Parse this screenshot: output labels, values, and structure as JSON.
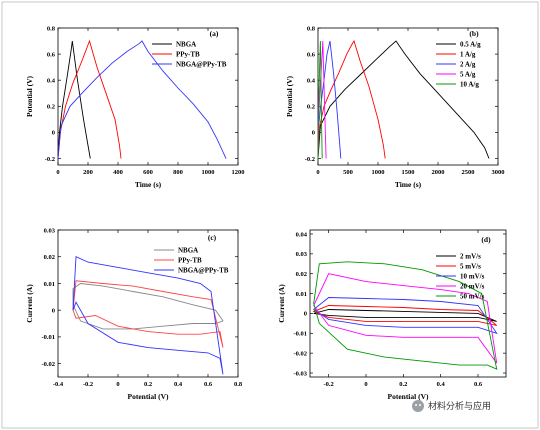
{
  "chart_data": [
    {
      "type": "line",
      "panel": "(a)",
      "xlabel": "Time (s)",
      "ylabel": "Potential (V)",
      "xlim": [
        0,
        1200
      ],
      "ylim": [
        -0.25,
        0.8
      ],
      "xticks": [
        0,
        200,
        400,
        600,
        800,
        1000,
        1200
      ],
      "yticks": [
        -0.2,
        0.0,
        0.2,
        0.4,
        0.6,
        0.8
      ],
      "legend_placement": "top-right",
      "series": [
        {
          "name": "NBGA",
          "color": "#000000",
          "x": [
            0,
            10,
            30,
            60,
            90,
            95,
            130,
            170,
            200,
            215
          ],
          "y": [
            -0.2,
            0.0,
            0.2,
            0.42,
            0.65,
            0.7,
            0.4,
            0.1,
            -0.1,
            -0.2
          ]
        },
        {
          "name": "PPy-TB",
          "color": "#ff0000",
          "x": [
            0,
            15,
            50,
            100,
            150,
            190,
            210,
            260,
            320,
            380,
            410,
            420
          ],
          "y": [
            -0.2,
            0.0,
            0.2,
            0.38,
            0.52,
            0.64,
            0.7,
            0.5,
            0.3,
            0.1,
            -0.1,
            -0.2
          ]
        },
        {
          "name": "NBGA@PPy-TB",
          "color": "#3333ff",
          "x": [
            0,
            20,
            80,
            160,
            260,
            360,
            460,
            540,
            560,
            600,
            700,
            800,
            900,
            1000,
            1060,
            1100,
            1120
          ],
          "y": [
            -0.2,
            0.05,
            0.2,
            0.3,
            0.42,
            0.53,
            0.62,
            0.68,
            0.7,
            0.62,
            0.47,
            0.34,
            0.22,
            0.08,
            -0.05,
            -0.15,
            -0.2
          ]
        }
      ]
    },
    {
      "type": "line",
      "panel": "(b)",
      "xlabel": "Time (s)",
      "ylabel": "Potential (V)",
      "xlim": [
        0,
        3000
      ],
      "ylim": [
        -0.25,
        0.8
      ],
      "xticks": [
        0,
        500,
        1000,
        1500,
        2000,
        2500,
        3000
      ],
      "yticks": [
        -0.2,
        0.0,
        0.2,
        0.4,
        0.6,
        0.8
      ],
      "legend_placement": "top-right",
      "series": [
        {
          "name": "0.5 A/g",
          "color": "#000000",
          "x": [
            0,
            40,
            200,
            450,
            700,
            950,
            1200,
            1300,
            1450,
            1700,
            2000,
            2300,
            2600,
            2780,
            2850
          ],
          "y": [
            -0.2,
            0.05,
            0.2,
            0.33,
            0.44,
            0.55,
            0.66,
            0.7,
            0.6,
            0.45,
            0.3,
            0.15,
            0.0,
            -0.12,
            -0.2
          ]
        },
        {
          "name": "1 A/g",
          "color": "#ff0000",
          "x": [
            0,
            20,
            100,
            220,
            350,
            480,
            560,
            600,
            700,
            850,
            1000,
            1090,
            1120
          ],
          "y": [
            -0.2,
            0.03,
            0.2,
            0.33,
            0.46,
            0.6,
            0.67,
            0.7,
            0.55,
            0.35,
            0.1,
            -0.1,
            -0.2
          ]
        },
        {
          "name": "2 A/g",
          "color": "#3333ff",
          "x": [
            0,
            10,
            50,
            100,
            150,
            200,
            260,
            320,
            360,
            380
          ],
          "y": [
            -0.2,
            0.05,
            0.22,
            0.4,
            0.6,
            0.7,
            0.45,
            0.15,
            -0.08,
            -0.2
          ]
        },
        {
          "name": "5 A/g",
          "color": "#ff00ff",
          "x": [
            0,
            5,
            25,
            50,
            75,
            80,
            95,
            110,
            125,
            135
          ],
          "y": [
            -0.2,
            0.05,
            0.25,
            0.45,
            0.65,
            0.7,
            0.45,
            0.2,
            -0.05,
            -0.2
          ]
        },
        {
          "name": "10 A/g",
          "color": "#009900",
          "x": [
            0,
            3,
            15,
            30,
            40,
            50,
            60,
            70
          ],
          "y": [
            -0.2,
            0.05,
            0.3,
            0.55,
            0.7,
            0.4,
            0.05,
            -0.2
          ]
        }
      ]
    },
    {
      "type": "line",
      "panel": "(c)",
      "xlabel": "Potential (V)",
      "ylabel": "Current (A)",
      "xlim": [
        -0.4,
        0.8
      ],
      "ylim": [
        -0.025,
        0.03
      ],
      "xticks": [
        -0.4,
        -0.2,
        0.0,
        0.2,
        0.4,
        0.6,
        0.8
      ],
      "yticks": [
        -0.02,
        -0.01,
        0.0,
        0.01,
        0.02,
        0.03
      ],
      "legend_placement": "top-right",
      "series": [
        {
          "name": "NBGA",
          "color": "#888888",
          "closed": true,
          "x": [
            -0.3,
            -0.25,
            -0.1,
            0.1,
            0.3,
            0.5,
            0.65,
            0.7,
            0.65,
            0.5,
            0.3,
            0.1,
            -0.1,
            -0.25,
            -0.3
          ],
          "y": [
            0.008,
            0.01,
            0.009,
            0.007,
            0.005,
            0.002,
            0.0,
            -0.004,
            -0.005,
            -0.005,
            -0.006,
            -0.007,
            -0.007,
            -0.004,
            0.002
          ]
        },
        {
          "name": "PPy-TB",
          "color": "#ff4444",
          "closed": true,
          "x": [
            -0.3,
            -0.28,
            -0.1,
            0.1,
            0.3,
            0.5,
            0.62,
            0.7,
            0.68,
            0.55,
            0.4,
            0.2,
            0.0,
            -0.15,
            -0.28,
            -0.3
          ],
          "y": [
            0.0,
            0.011,
            0.01,
            0.009,
            0.007,
            0.005,
            0.004,
            -0.014,
            -0.008,
            -0.009,
            -0.009,
            -0.008,
            -0.006,
            -0.002,
            -0.003,
            0.0
          ]
        },
        {
          "name": "NBGA@PPy-TB",
          "color": "#3333ff",
          "closed": true,
          "x": [
            -0.3,
            -0.28,
            -0.2,
            0.0,
            0.2,
            0.4,
            0.55,
            0.62,
            0.7,
            0.68,
            0.6,
            0.4,
            0.2,
            0.0,
            -0.2,
            -0.28,
            -0.3
          ],
          "y": [
            0.0,
            0.02,
            0.018,
            0.016,
            0.014,
            0.012,
            0.01,
            0.007,
            -0.024,
            -0.018,
            -0.016,
            -0.015,
            -0.014,
            -0.012,
            -0.005,
            0.003,
            0.0
          ]
        }
      ]
    },
    {
      "type": "line",
      "panel": "(d)",
      "xlabel": "Potential (V)",
      "ylabel": "Current (A)",
      "xlim": [
        -0.3,
        0.75
      ],
      "ylim": [
        -0.032,
        0.042
      ],
      "xticks": [
        -0.2,
        0.0,
        0.2,
        0.4,
        0.6
      ],
      "yticks": [
        -0.03,
        -0.02,
        -0.01,
        0.0,
        0.01,
        0.02,
        0.03,
        0.04
      ],
      "legend_placement": "top-right",
      "series": [
        {
          "name": "2 mV/s",
          "color": "#000000",
          "closed": true,
          "x": [
            -0.28,
            -0.2,
            0.0,
            0.2,
            0.4,
            0.6,
            0.7,
            0.6,
            0.4,
            0.2,
            0.0,
            -0.2,
            -0.28
          ],
          "y": [
            0.0,
            0.002,
            0.0015,
            0.001,
            0.0005,
            0.0,
            -0.004,
            -0.002,
            -0.002,
            -0.002,
            -0.002,
            -0.001,
            0.0
          ]
        },
        {
          "name": "5 mV/s",
          "color": "#ff0000",
          "closed": true,
          "x": [
            -0.28,
            -0.2,
            0.0,
            0.2,
            0.4,
            0.6,
            0.7,
            0.6,
            0.4,
            0.2,
            0.0,
            -0.2,
            -0.28
          ],
          "y": [
            0.001,
            0.004,
            0.0035,
            0.003,
            0.002,
            0.0015,
            -0.006,
            -0.004,
            -0.004,
            -0.004,
            -0.004,
            -0.002,
            0.001
          ]
        },
        {
          "name": "10 mV/s",
          "color": "#3333ff",
          "closed": true,
          "x": [
            -0.28,
            -0.2,
            0.0,
            0.2,
            0.4,
            0.6,
            0.7,
            0.6,
            0.4,
            0.2,
            0.0,
            -0.2,
            -0.28
          ],
          "y": [
            0.002,
            0.008,
            0.0075,
            0.007,
            0.006,
            0.004,
            -0.01,
            -0.007,
            -0.007,
            -0.007,
            -0.006,
            -0.003,
            0.002
          ]
        },
        {
          "name": "20 mV/s",
          "color": "#ff00ff",
          "closed": true,
          "x": [
            -0.28,
            -0.2,
            0.0,
            0.2,
            0.4,
            0.55,
            0.65,
            0.7,
            0.6,
            0.4,
            0.2,
            0.0,
            -0.2,
            -0.28
          ],
          "y": [
            0.004,
            0.02,
            0.016,
            0.014,
            0.012,
            0.01,
            0.006,
            -0.025,
            -0.012,
            -0.012,
            -0.012,
            -0.011,
            -0.006,
            0.004
          ]
        },
        {
          "name": "50 mV/s",
          "color": "#009900",
          "closed": true,
          "x": [
            -0.28,
            -0.25,
            -0.1,
            0.1,
            0.3,
            0.5,
            0.62,
            0.7,
            0.65,
            0.5,
            0.3,
            0.1,
            -0.1,
            -0.25,
            -0.28
          ],
          "y": [
            0.005,
            0.025,
            0.026,
            0.025,
            0.022,
            0.016,
            0.01,
            -0.028,
            -0.026,
            -0.026,
            -0.024,
            -0.022,
            -0.018,
            -0.005,
            0.005
          ]
        }
      ]
    }
  ],
  "watermark": {
    "text": "材料分析与应用",
    "icon": "wechat-icon"
  }
}
